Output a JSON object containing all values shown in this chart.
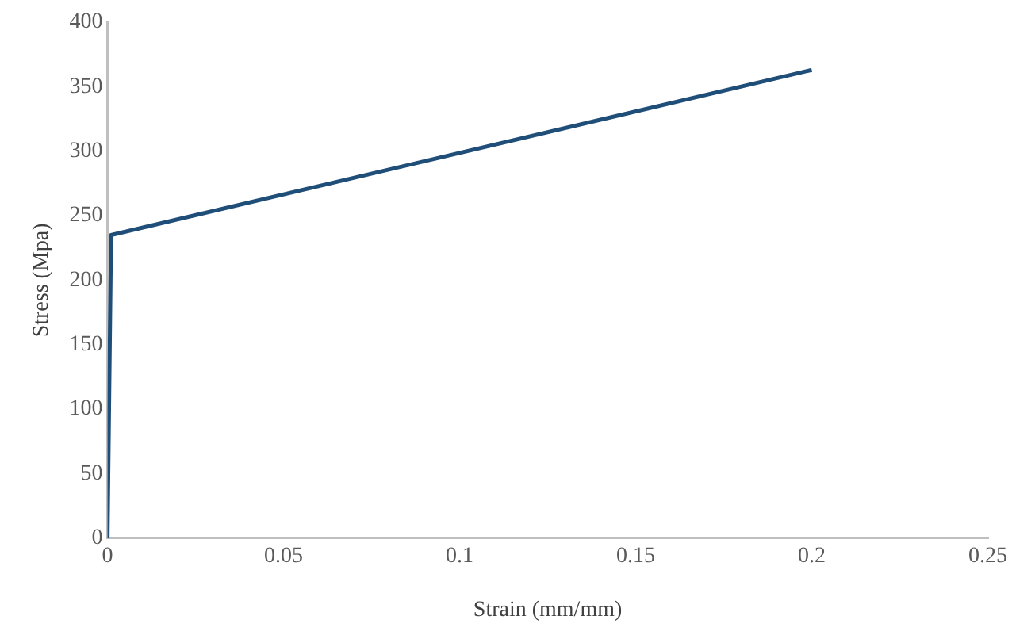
{
  "chart_data": {
    "type": "line",
    "xlabel": "Strain (mm/mm)",
    "ylabel": "Stress (Mpa)",
    "series": [
      {
        "color": "#1f4e79",
        "x": [
          0,
          0.001,
          0.2
        ],
        "values": [
          0,
          235,
          363
        ]
      }
    ],
    "xlim": [
      0,
      0.25
    ],
    "xticks": [
      0,
      0.05,
      0.1,
      0.15,
      0.2,
      0.25
    ],
    "ylim": [
      0,
      400
    ],
    "yticks": [
      0,
      50,
      100,
      150,
      200,
      250,
      300,
      350,
      400
    ],
    "grid": false,
    "legend": false,
    "marker": "none",
    "line_style": "solid"
  }
}
